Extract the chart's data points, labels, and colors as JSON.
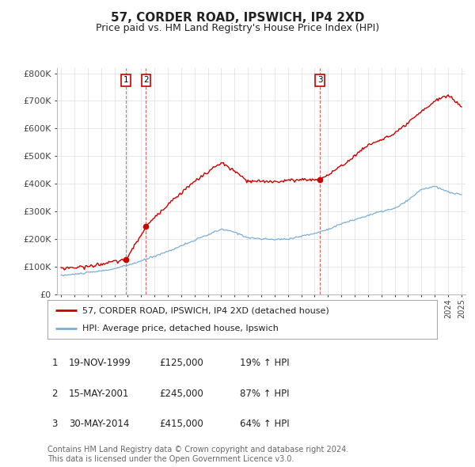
{
  "title": "57, CORDER ROAD, IPSWICH, IP4 2XD",
  "subtitle": "Price paid vs. HM Land Registry's House Price Index (HPI)",
  "title_fontsize": 11,
  "subtitle_fontsize": 9,
  "background_color": "#ffffff",
  "grid_color": "#dddddd",
  "ylim": [
    0,
    820000
  ],
  "yticks": [
    0,
    100000,
    200000,
    300000,
    400000,
    500000,
    600000,
    700000,
    800000
  ],
  "ytick_labels": [
    "£0",
    "£100K",
    "£200K",
    "£300K",
    "£400K",
    "£500K",
    "£600K",
    "£700K",
    "£800K"
  ],
  "red_line_color": "#cc0000",
  "blue_line_color": "#7aaed6",
  "purchase_color": "#cc0000",
  "vline_color": "#cc0000",
  "purchases": [
    {
      "num": 1,
      "date": "19-NOV-1999",
      "price": 125000,
      "x": 1999.88
    },
    {
      "num": 2,
      "date": "15-MAY-2001",
      "price": 245000,
      "x": 2001.37
    },
    {
      "num": 3,
      "date": "30-MAY-2014",
      "price": 415000,
      "x": 2014.41
    }
  ],
  "legend_entries": [
    "57, CORDER ROAD, IPSWICH, IP4 2XD (detached house)",
    "HPI: Average price, detached house, Ipswich"
  ],
  "footer_lines": [
    "Contains HM Land Registry data © Crown copyright and database right 2024.",
    "This data is licensed under the Open Government Licence v3.0."
  ],
  "footer_fontsize": 7,
  "table_rows": [
    {
      "num": 1,
      "date": "19-NOV-1999",
      "price": "£125,000",
      "pct": "19% ↑ HPI"
    },
    {
      "num": 2,
      "date": "15-MAY-2001",
      "price": "£245,000",
      "pct": "87% ↑ HPI"
    },
    {
      "num": 3,
      "date": "30-MAY-2014",
      "price": "£415,000",
      "pct": "64% ↑ HPI"
    }
  ],
  "hpi_anchors_x": [
    1995,
    1996,
    1997,
    1998,
    1999,
    2000,
    2001,
    2002,
    2003,
    2004,
    2005,
    2006,
    2007,
    2008,
    2009,
    2010,
    2011,
    2012,
    2013,
    2014,
    2015,
    2016,
    2017,
    2018,
    2019,
    2020,
    2021,
    2022,
    2023,
    2024,
    2025
  ],
  "hpi_anchors_y": [
    68000,
    72000,
    78000,
    84000,
    92000,
    105000,
    120000,
    138000,
    155000,
    175000,
    195000,
    215000,
    235000,
    225000,
    205000,
    200000,
    198000,
    200000,
    210000,
    220000,
    235000,
    255000,
    270000,
    285000,
    300000,
    310000,
    340000,
    380000,
    390000,
    370000,
    360000
  ],
  "red_anchors_x": [
    1995,
    1997,
    1999,
    1999.88,
    2001.37,
    2003,
    2005,
    2007,
    2008,
    2009,
    2011,
    2013,
    2014.41,
    2016,
    2018,
    2020,
    2022,
    2023,
    2024,
    2025
  ],
  "red_anchors_y": [
    94000,
    100000,
    118000,
    125000,
    245000,
    326000,
    408000,
    476000,
    445000,
    408000,
    408000,
    415000,
    415000,
    463000,
    540000,
    580000,
    660000,
    700000,
    720000,
    680000
  ]
}
